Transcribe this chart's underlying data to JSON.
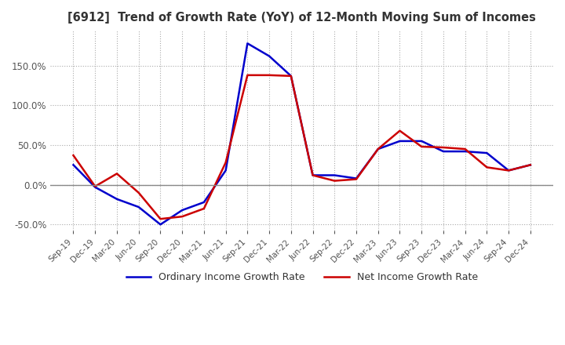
{
  "title": "[6912]  Trend of Growth Rate (YoY) of 12-Month Moving Sum of Incomes",
  "title_fontsize": 10.5,
  "x_labels": [
    "Sep-19",
    "Dec-19",
    "Mar-20",
    "Jun-20",
    "Sep-20",
    "Dec-20",
    "Mar-21",
    "Jun-21",
    "Sep-21",
    "Dec-21",
    "Mar-22",
    "Jun-22",
    "Sep-22",
    "Dec-22",
    "Mar-23",
    "Jun-23",
    "Sep-23",
    "Dec-23",
    "Mar-24",
    "Jun-24",
    "Sep-24",
    "Dec-24"
  ],
  "ordinary_income": [
    25,
    -3,
    -18,
    -28,
    -50,
    -32,
    -22,
    18,
    178,
    162,
    137,
    12,
    12,
    8,
    45,
    55,
    55,
    42,
    42,
    40,
    18,
    25
  ],
  "net_income": [
    37,
    -2,
    14,
    -10,
    -43,
    -40,
    -30,
    28,
    138,
    138,
    137,
    12,
    5,
    7,
    45,
    68,
    48,
    47,
    45,
    22,
    18,
    25
  ],
  "ordinary_color": "#0000cc",
  "net_color": "#cc0000",
  "ylim_min": -58,
  "ylim_max": 195,
  "ytick_values": [
    -50,
    0,
    50,
    100,
    150
  ],
  "grid_color": "#aaaaaa",
  "zero_line_color": "#888888",
  "background_color": "#ffffff",
  "legend_ordinary": "Ordinary Income Growth Rate",
  "legend_net": "Net Income Growth Rate",
  "linewidth": 1.8
}
